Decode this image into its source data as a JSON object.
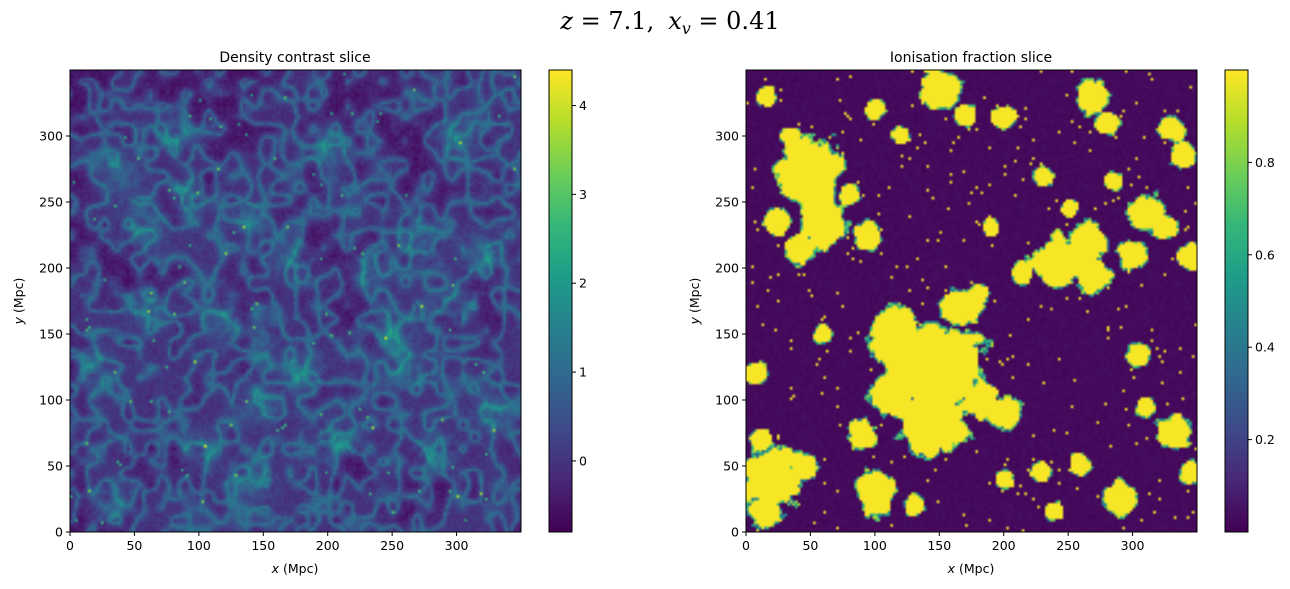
{
  "figure": {
    "suptitle": {
      "z_sym": "z",
      "z_eq": " = 7.1,",
      "x_sym": "x",
      "x_sub": "v",
      "x_eq": " = 0.41"
    }
  },
  "colors": {
    "viridis": [
      "#440154",
      "#482878",
      "#3e4a89",
      "#31688e",
      "#26828e",
      "#1f9e89",
      "#35b779",
      "#6ece58",
      "#b5de2b",
      "#fde725"
    ]
  },
  "chart_data": [
    {
      "type": "heatmap",
      "title": "Density contrast slice",
      "xlabel_sym": "x",
      "xlabel_unit": " (Mpc)",
      "ylabel_sym": "y",
      "ylabel_unit": " (Mpc)",
      "xlim": [
        0,
        350
      ],
      "ylim": [
        0,
        350
      ],
      "xticks": [
        0,
        50,
        100,
        150,
        200,
        250,
        300
      ],
      "yticks": [
        0,
        50,
        100,
        150,
        200,
        250,
        300
      ],
      "colormap": "viridis",
      "clim": [
        -0.8,
        4.4
      ],
      "colorbar_ticks": [
        0,
        1,
        2,
        3,
        4
      ],
      "field": "cosmic web density contrast, mostly -0.8 to 1 with filaments up to ~4.4",
      "filament_points": [
        [
          40,
          270
        ],
        [
          60,
          230
        ],
        [
          90,
          255
        ],
        [
          140,
          235
        ],
        [
          170,
          210
        ],
        [
          230,
          195
        ],
        [
          270,
          220
        ],
        [
          120,
          160
        ],
        [
          150,
          145
        ],
        [
          180,
          120
        ],
        [
          150,
          95
        ],
        [
          100,
          60
        ],
        [
          60,
          170
        ],
        [
          20,
          125
        ],
        [
          300,
          170
        ],
        [
          320,
          210
        ],
        [
          250,
          150
        ],
        [
          210,
          70
        ],
        [
          280,
          60
        ],
        [
          140,
          40
        ],
        [
          30,
          20
        ],
        [
          300,
          300
        ],
        [
          200,
          290
        ],
        [
          80,
          300
        ],
        [
          260,
          120
        ],
        [
          330,
          90
        ]
      ]
    },
    {
      "type": "heatmap",
      "title": "Ionisation fraction slice",
      "xlabel_sym": "x",
      "xlabel_unit": " (Mpc)",
      "ylabel_sym": "y",
      "ylabel_unit": " (Mpc)",
      "xlim": [
        0,
        350
      ],
      "ylim": [
        0,
        350
      ],
      "xticks": [
        0,
        50,
        100,
        150,
        200,
        250,
        300
      ],
      "yticks": [
        0,
        50,
        100,
        150,
        200,
        250,
        300
      ],
      "colormap": "viridis",
      "clim": [
        0.0,
        1.0
      ],
      "colorbar_ticks": [
        0.2,
        0.4,
        0.6,
        0.8
      ],
      "field": "binary ionisation field, ionised bubbles (~1) in neutral medium (~0)",
      "ionised_bubbles": [
        [
          150,
          127,
          38
        ],
        [
          145,
          85,
          30
        ],
        [
          118,
          145,
          25
        ],
        [
          165,
          170,
          18
        ],
        [
          115,
          107,
          20
        ],
        [
          182,
          100,
          15
        ],
        [
          200,
          90,
          14
        ],
        [
          50,
          270,
          28
        ],
        [
          60,
          235,
          22
        ],
        [
          42,
          215,
          15
        ],
        [
          25,
          235,
          12
        ],
        [
          95,
          225,
          12
        ],
        [
          80,
          255,
          10
        ],
        [
          240,
          205,
          22
        ],
        [
          265,
          220,
          18
        ],
        [
          270,
          195,
          15
        ],
        [
          300,
          210,
          12
        ],
        [
          310,
          242,
          15
        ],
        [
          325,
          230,
          10
        ],
        [
          345,
          210,
          12
        ],
        [
          215,
          195,
          10
        ],
        [
          20,
          40,
          25
        ],
        [
          15,
          15,
          15
        ],
        [
          45,
          50,
          12
        ],
        [
          8,
          120,
          10
        ],
        [
          12,
          70,
          10
        ],
        [
          100,
          30,
          18
        ],
        [
          90,
          75,
          12
        ],
        [
          130,
          20,
          10
        ],
        [
          150,
          335,
          18
        ],
        [
          170,
          315,
          10
        ],
        [
          270,
          330,
          15
        ],
        [
          280,
          310,
          10
        ],
        [
          330,
          305,
          10
        ],
        [
          340,
          285,
          10
        ],
        [
          200,
          315,
          10
        ],
        [
          330,
          75,
          15
        ],
        [
          345,
          45,
          10
        ],
        [
          290,
          25,
          15
        ],
        [
          260,
          50,
          10
        ],
        [
          230,
          45,
          10
        ],
        [
          240,
          15,
          8
        ],
        [
          310,
          95,
          8
        ],
        [
          15,
          330,
          10
        ],
        [
          35,
          300,
          8
        ],
        [
          100,
          320,
          8
        ],
        [
          230,
          270,
          10
        ],
        [
          250,
          245,
          8
        ],
        [
          285,
          265,
          8
        ],
        [
          180,
          180,
          8
        ],
        [
          190,
          230,
          8
        ],
        [
          120,
          300,
          8
        ],
        [
          305,
          135,
          10
        ],
        [
          200,
          40,
          8
        ],
        [
          60,
          150,
          8
        ]
      ]
    }
  ]
}
